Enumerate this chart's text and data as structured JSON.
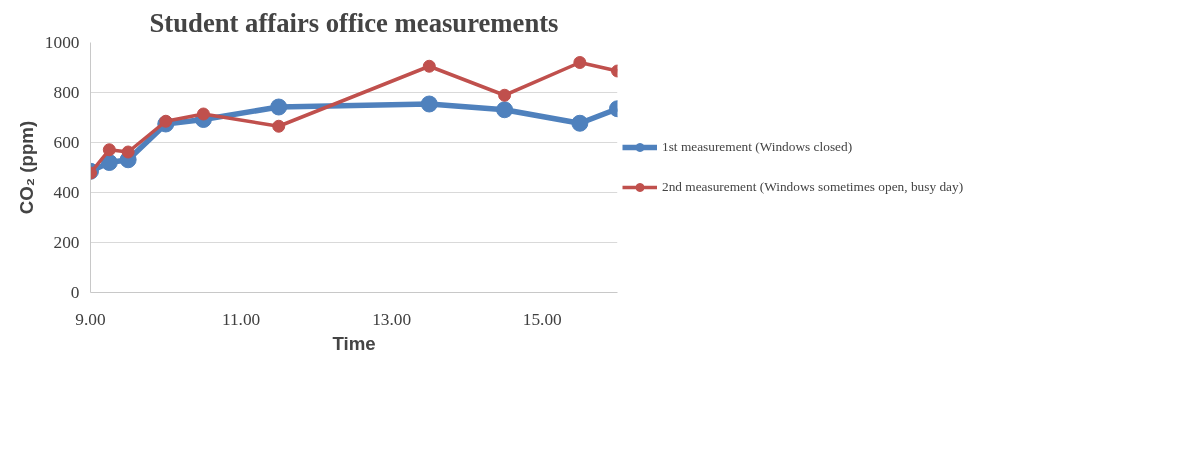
{
  "chart_data": {
    "type": "line",
    "title": "Student affairs office measurements",
    "xlabel": "Time",
    "ylabel": "CO₂ (ppm)",
    "x": [
      9.0,
      9.25,
      9.5,
      10.0,
      10.5,
      11.5,
      13.5,
      14.5,
      15.5,
      16.0
    ],
    "series": [
      {
        "name": "1st measurement (Windows closed)",
        "color": "#4f81bd",
        "values": [
          485,
          520,
          531,
          674,
          692,
          742,
          754,
          731,
          677,
          735
        ]
      },
      {
        "name": "2nd measurement (Windows sometimes open, busy day)",
        "color": "#c0504d",
        "values": [
          478,
          571,
          562,
          685,
          714,
          665,
          905,
          789,
          920,
          886
        ]
      }
    ],
    "xlim": [
      9.0,
      16.0
    ],
    "xticks": [
      {
        "value": 9,
        "label": "9.00"
      },
      {
        "value": 11,
        "label": "11.00"
      },
      {
        "value": 13,
        "label": "13.00"
      },
      {
        "value": 15,
        "label": "15.00"
      }
    ],
    "ylim": [
      0,
      1000
    ],
    "yticks": [
      0,
      200,
      400,
      600,
      800,
      1000
    ],
    "grid": "y",
    "legend": "right",
    "marker": "circle",
    "line_style": "solid"
  }
}
